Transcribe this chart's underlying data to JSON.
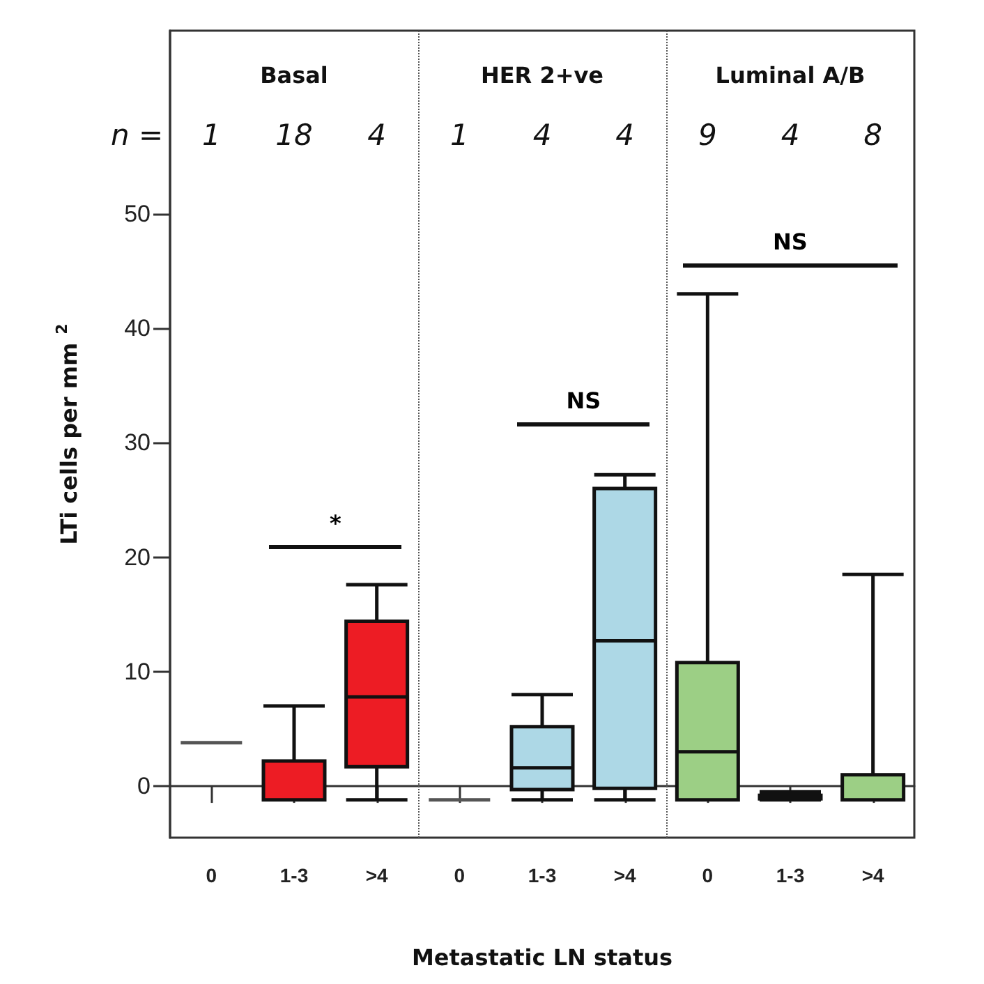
{
  "chart_data": {
    "type": "box",
    "xlabel": "Metastatic LN status",
    "ylabel": "LTi cells per mm$^{2}$",
    "categories": [
      "0",
      "1-3",
      ">4",
      "0",
      "1-3",
      ">4",
      "0",
      "1-3",
      ">4"
    ],
    "colors": [
      "#555555",
      "#ed1c24",
      "#ed1c24",
      "#555555",
      "#add8e6",
      "#add8e6",
      "#9ccf85",
      "#9ccf85",
      "#9ccf85"
    ],
    "boxes": [
      {
        "low": 3.8,
        "q1": 3.8,
        "median": 3.8,
        "q3": 3.8,
        "high": 3.8
      },
      {
        "low": -1.2,
        "q1": -1.2,
        "median": -1.2,
        "q3": 2.2,
        "high": 7
      },
      {
        "low": -1.2,
        "q1": 1.7,
        "median": 7.8,
        "q3": 14.4,
        "high": 17.6
      },
      {
        "low": -1.2,
        "q1": -1.2,
        "median": -1.2,
        "q3": -1.2,
        "high": -1.2
      },
      {
        "low": -1.2,
        "q1": -0.3,
        "median": 1.6,
        "q3": 5.2,
        "high": 8
      },
      {
        "low": -1.2,
        "q1": -0.2,
        "median": 12.7,
        "q3": 26,
        "high": 27.2
      },
      {
        "low": -1.2,
        "q1": -1.2,
        "median": 3,
        "q3": 10.8,
        "high": 43
      },
      {
        "low": -1.2,
        "q1": -1.1,
        "median": -1,
        "q3": -0.8,
        "high": -0.5
      },
      {
        "low": -1.2,
        "q1": -1.2,
        "median": -1.2,
        "q3": 1,
        "high": 18.5
      }
    ],
    "ylim": [
      -4.5,
      66
    ],
    "yticks": [
      0,
      10,
      20,
      30,
      40,
      50
    ],
    "grid": false,
    "annotations": [
      "Basal",
      "HER 2+ve",
      "Luminal A/B",
      "n =",
      "1",
      "18",
      "4",
      "1",
      "4",
      "4",
      "9",
      "4",
      "8",
      "*",
      "NS",
      "NS"
    ]
  }
}
